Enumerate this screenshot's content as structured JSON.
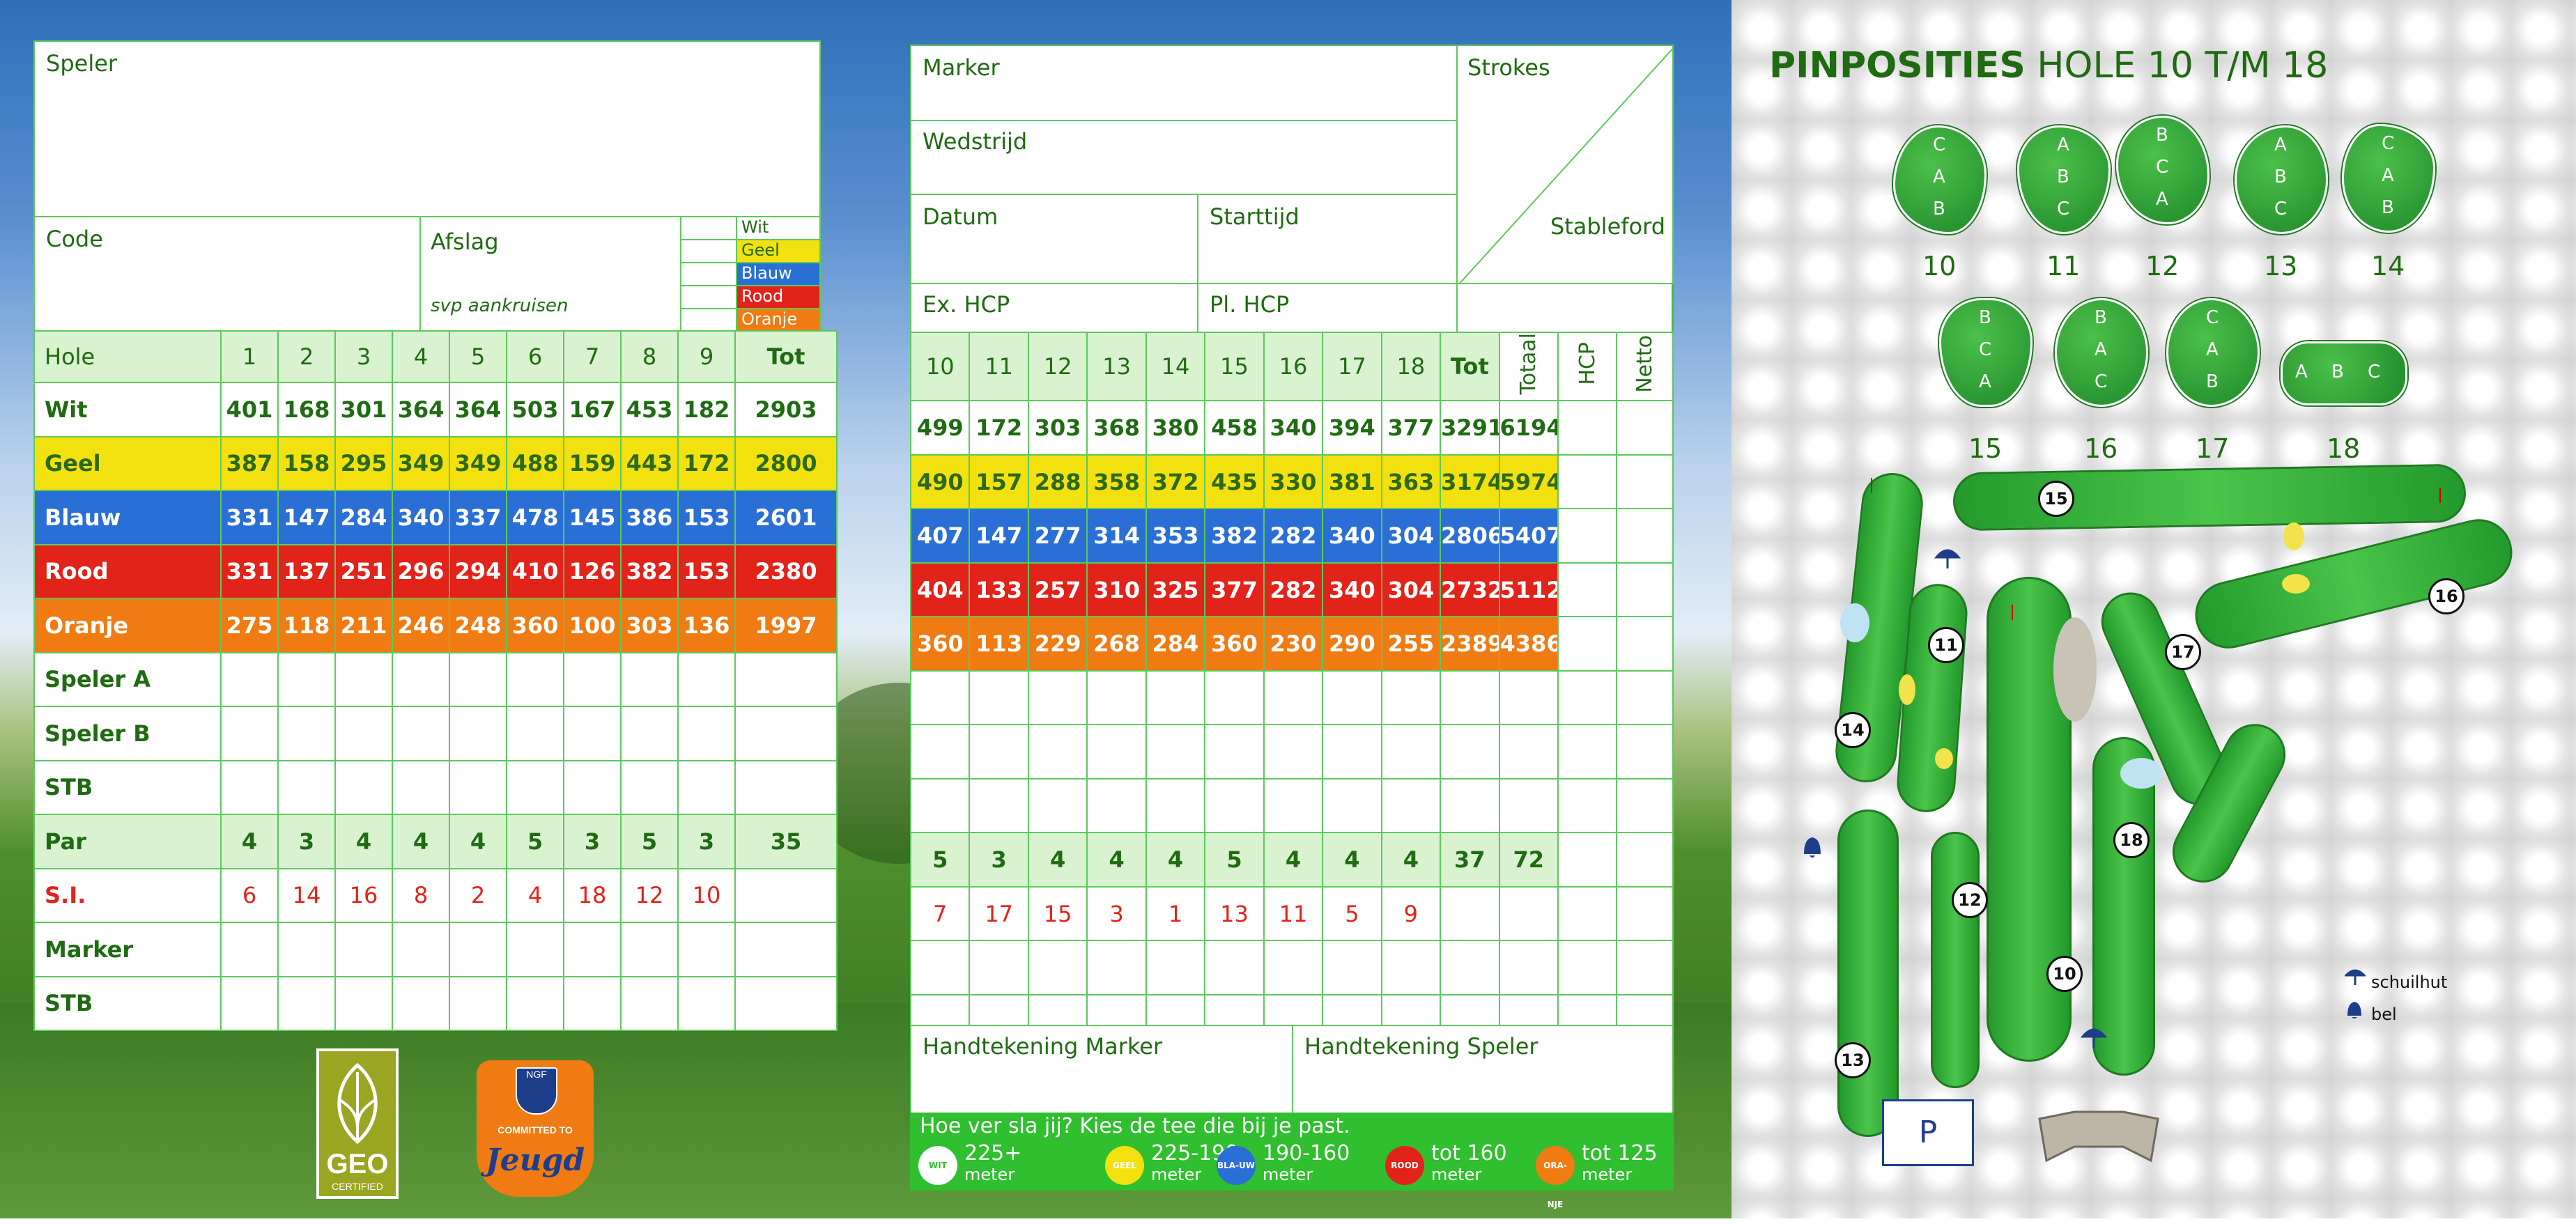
{
  "left_card": {
    "speler_label": "Speler",
    "code_label": "Code",
    "afslag_label": "Afslag",
    "afslag_hint": "svp aankruisen",
    "tees": [
      {
        "name": "Wit",
        "color": "#ffffff",
        "text": "#1f6b12"
      },
      {
        "name": "Geel",
        "color": "#f3e10f",
        "text": "#1f6b12"
      },
      {
        "name": "Blauw",
        "color": "#2a6fd6",
        "text": "#ffffff"
      },
      {
        "name": "Rood",
        "color": "#e2231a",
        "text": "#ffffff"
      },
      {
        "name": "Oranje",
        "color": "#f07b12",
        "text": "#ffffff"
      }
    ]
  },
  "front": {
    "header": [
      "Hole",
      "1",
      "2",
      "3",
      "4",
      "5",
      "6",
      "7",
      "8",
      "9",
      "Tot"
    ],
    "rows": [
      {
        "cls": "row-wit",
        "cells": [
          "Wit",
          "401",
          "168",
          "301",
          "364",
          "364",
          "503",
          "167",
          "453",
          "182",
          "2903"
        ]
      },
      {
        "cls": "row-geel",
        "cells": [
          "Geel",
          "387",
          "158",
          "295",
          "349",
          "349",
          "488",
          "159",
          "443",
          "172",
          "2800"
        ]
      },
      {
        "cls": "row-blauw",
        "cells": [
          "Blauw",
          "331",
          "147",
          "284",
          "340",
          "337",
          "478",
          "145",
          "386",
          "153",
          "2601"
        ]
      },
      {
        "cls": "row-rood",
        "cells": [
          "Rood",
          "331",
          "137",
          "251",
          "296",
          "294",
          "410",
          "126",
          "382",
          "153",
          "2380"
        ]
      },
      {
        "cls": "row-oranje",
        "cells": [
          "Oranje",
          "275",
          "118",
          "211",
          "246",
          "248",
          "360",
          "100",
          "303",
          "136",
          "1997"
        ]
      },
      {
        "cls": "row-blank",
        "cells": [
          "Speler A",
          "",
          "",
          "",
          "",
          "",
          "",
          "",
          "",
          "",
          ""
        ]
      },
      {
        "cls": "row-blank",
        "cells": [
          "Speler B",
          "",
          "",
          "",
          "",
          "",
          "",
          "",
          "",
          "",
          ""
        ]
      },
      {
        "cls": "row-blank",
        "cells": [
          "STB",
          "",
          "",
          "",
          "",
          "",
          "",
          "",
          "",
          "",
          ""
        ]
      },
      {
        "cls": "row-par",
        "cells": [
          "Par",
          "4",
          "3",
          "4",
          "4",
          "4",
          "5",
          "3",
          "5",
          "3",
          "35"
        ]
      },
      {
        "cls": "row-si",
        "cells": [
          "S.I.",
          "6",
          "14",
          "16",
          "8",
          "2",
          "4",
          "18",
          "12",
          "10",
          ""
        ]
      },
      {
        "cls": "row-blank",
        "cells": [
          "Marker",
          "",
          "",
          "",
          "",
          "",
          "",
          "",
          "",
          "",
          ""
        ]
      },
      {
        "cls": "row-blank",
        "cells": [
          "STB",
          "",
          "",
          "",
          "",
          "",
          "",
          "",
          "",
          "",
          ""
        ]
      }
    ]
  },
  "right_card": {
    "marker_label": "Marker",
    "wedstrijd_label": "Wedstrijd",
    "datum_label": "Datum",
    "starttijd_label": "Starttijd",
    "exhcp_label": "Ex. HCP",
    "plhcp_label": "Pl. HCP",
    "strokes_label": "Strokes",
    "stableford_label": "Stableford",
    "hand_marker": "Handtekening Marker",
    "hand_speler": "Handtekening Speler"
  },
  "back": {
    "header": [
      "10",
      "11",
      "12",
      "13",
      "14",
      "15",
      "16",
      "17",
      "18",
      "Tot",
      "Totaal",
      "HCP",
      "Netto"
    ],
    "rows": [
      {
        "cls": "row-wit",
        "cells": [
          "499",
          "172",
          "303",
          "368",
          "380",
          "458",
          "340",
          "394",
          "377",
          "3291",
          "6194",
          "",
          ""
        ]
      },
      {
        "cls": "row-geel",
        "cells": [
          "490",
          "157",
          "288",
          "358",
          "372",
          "435",
          "330",
          "381",
          "363",
          "3174",
          "5974",
          "",
          ""
        ]
      },
      {
        "cls": "row-blauw",
        "cells": [
          "407",
          "147",
          "277",
          "314",
          "353",
          "382",
          "282",
          "340",
          "304",
          "2806",
          "5407",
          "",
          ""
        ]
      },
      {
        "cls": "row-rood",
        "cells": [
          "404",
          "133",
          "257",
          "310",
          "325",
          "377",
          "282",
          "340",
          "304",
          "2732",
          "5112",
          "",
          ""
        ]
      },
      {
        "cls": "row-oranje",
        "cells": [
          "360",
          "113",
          "229",
          "268",
          "284",
          "360",
          "230",
          "290",
          "255",
          "2389",
          "4386",
          "",
          ""
        ]
      },
      {
        "cls": "row-blank",
        "cells": [
          "",
          "",
          "",
          "",
          "",
          "",
          "",
          "",
          "",
          "",
          "",
          "",
          ""
        ]
      },
      {
        "cls": "row-blank",
        "cells": [
          "",
          "",
          "",
          "",
          "",
          "",
          "",
          "",
          "",
          "",
          "",
          "",
          ""
        ]
      },
      {
        "cls": "row-blank",
        "cells": [
          "",
          "",
          "",
          "",
          "",
          "",
          "",
          "",
          "",
          "",
          "",
          "",
          ""
        ]
      },
      {
        "cls": "row-par",
        "cells": [
          "5",
          "3",
          "4",
          "4",
          "4",
          "5",
          "4",
          "4",
          "4",
          "37",
          "72",
          "",
          ""
        ]
      },
      {
        "cls": "row-si",
        "cells": [
          "7",
          "17",
          "15",
          "3",
          "1",
          "13",
          "11",
          "5",
          "9",
          "",
          "",
          "",
          ""
        ]
      },
      {
        "cls": "row-blank",
        "cells": [
          "",
          "",
          "",
          "",
          "",
          "",
          "",
          "",
          "",
          "",
          "",
          "",
          ""
        ]
      },
      {
        "cls": "row-blank",
        "cells": [
          "",
          "",
          "",
          "",
          "",
          "",
          "",
          "",
          "",
          "",
          "",
          "",
          ""
        ]
      }
    ]
  },
  "tee_bar": {
    "title": "Hoe ver sla jij? Kies de tee die bij je past.",
    "items": [
      {
        "badge": "WIT",
        "color": "#ffffff",
        "badge_text": "#2fbf2f",
        "range": "225+",
        "unit": "meter"
      },
      {
        "badge": "GEEL",
        "color": "#f3e10f",
        "badge_text": "#ffffff",
        "range": "225-190",
        "unit": "meter"
      },
      {
        "badge": "BLA-UW",
        "color": "#2a6fd6",
        "badge_text": "#ffffff",
        "range": "190-160",
        "unit": "meter"
      },
      {
        "badge": "ROOD",
        "color": "#e2231a",
        "badge_text": "#ffffff",
        "range": "tot 160",
        "unit": "meter"
      },
      {
        "badge": "ORA-NJE",
        "color": "#f07b12",
        "badge_text": "#ffffff",
        "range": "tot 125",
        "unit": "meter"
      }
    ]
  },
  "logos": {
    "geo_text": "GEO",
    "geo_sub": "CERTIFIED",
    "ngf_top": "NGF",
    "ngf_mid": "COMMITTED TO",
    "ngf_word": "Jeugd"
  },
  "pin_panel": {
    "title_bold": "PINPOSITIES",
    "title_rest": "HOLE 10 T/M 18",
    "greens": [
      {
        "hole": "10",
        "letters": [
          "C",
          "A",
          "B"
        ]
      },
      {
        "hole": "11",
        "letters": [
          "A",
          "B",
          "C"
        ]
      },
      {
        "hole": "12",
        "letters": [
          "B",
          "C",
          "A"
        ]
      },
      {
        "hole": "13",
        "letters": [
          "A",
          "B",
          "C"
        ]
      },
      {
        "hole": "14",
        "letters": [
          "C",
          "A",
          "B"
        ]
      },
      {
        "hole": "15",
        "letters": [
          "B",
          "C",
          "A"
        ]
      },
      {
        "hole": "16",
        "letters": [
          "B",
          "A",
          "C"
        ]
      },
      {
        "hole": "17",
        "letters": [
          "C",
          "A",
          "B"
        ]
      },
      {
        "hole": "18",
        "letters": [
          "A",
          "B",
          "C"
        ]
      }
    ],
    "map_numbers": [
      "15",
      "16",
      "11",
      "17",
      "14",
      "18",
      "12",
      "10",
      "13"
    ],
    "legend_schuilhut": "schuilhut",
    "legend_bel": "bel",
    "parking_label": "P"
  }
}
